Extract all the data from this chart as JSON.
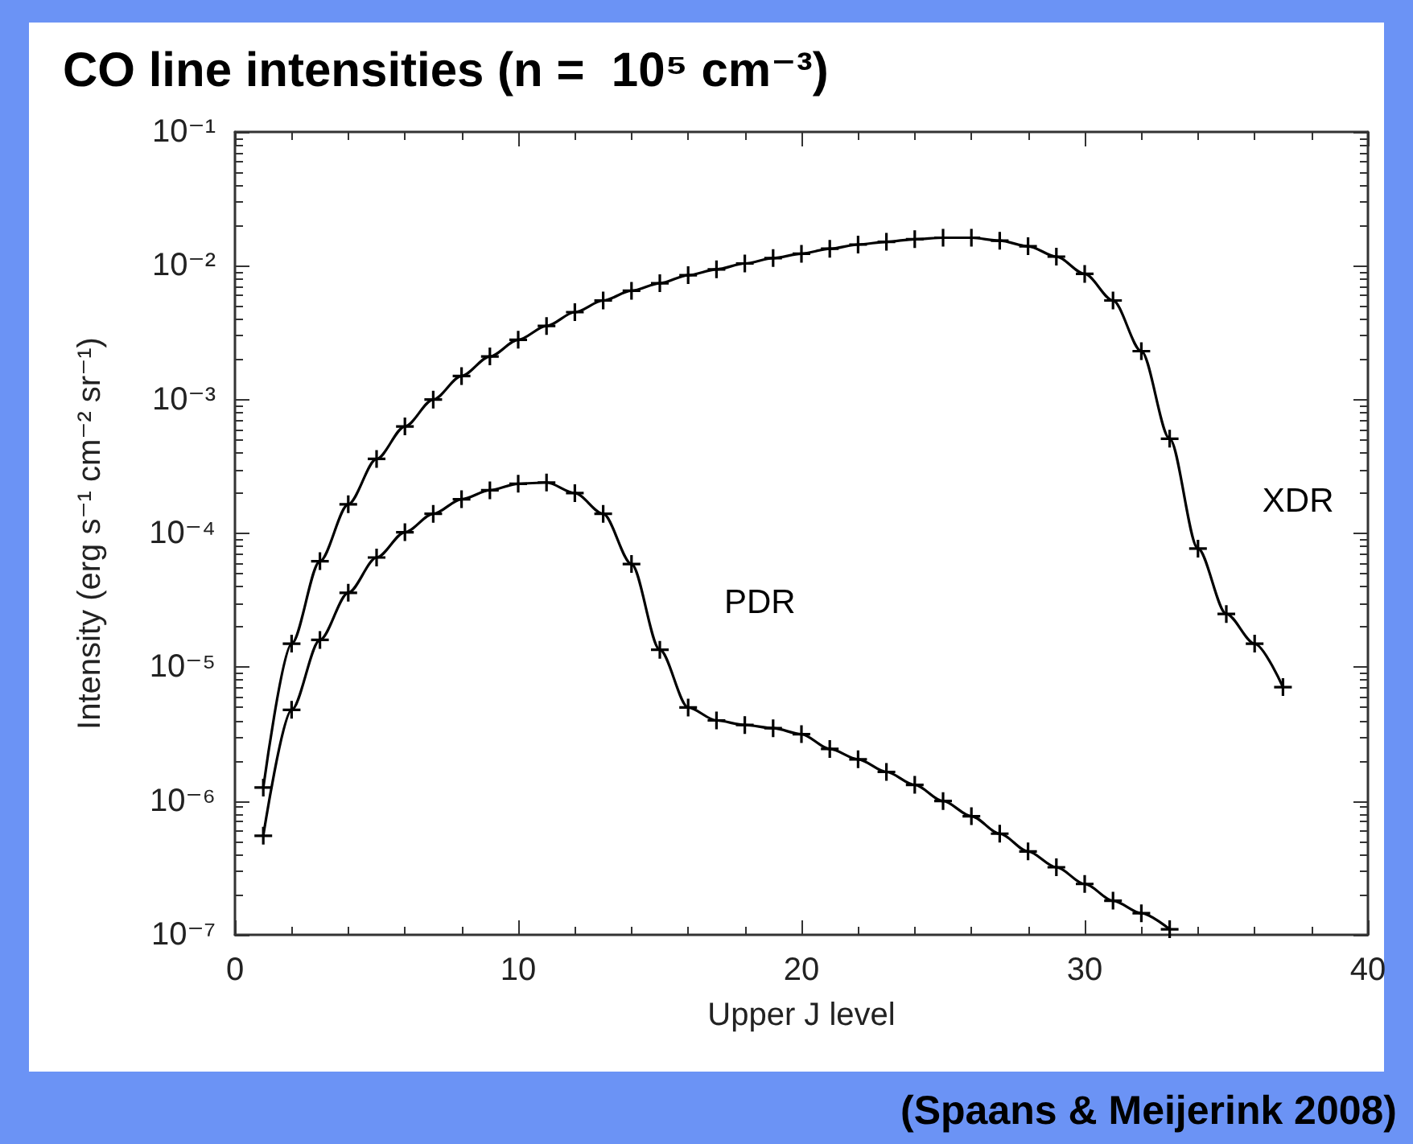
{
  "chart_data": {
    "type": "line",
    "title": "CO line intensities (n =  10⁵ cm⁻³)",
    "xlabel": "Upper J level",
    "ylabel": "Intensity (erg s⁻¹ cm⁻² sr⁻¹)",
    "annotations": [
      "(Spaans & Meijerink 2008)"
    ],
    "x": [
      1,
      2,
      3,
      4,
      5,
      6,
      7,
      8,
      9,
      10,
      11,
      12,
      13,
      14,
      15,
      16,
      17,
      18,
      19,
      20,
      21,
      22,
      23,
      24,
      25,
      26,
      27,
      28,
      29,
      30,
      31,
      32,
      33,
      34,
      35,
      36,
      37
    ],
    "series": [
      {
        "name": "XDR",
        "color": "#000000",
        "values": [
          1.26e-06,
          1.5e-05,
          6.2e-05,
          0.000165,
          0.00036,
          0.00063,
          0.001,
          0.0015,
          0.0021,
          0.0028,
          0.00355,
          0.0045,
          0.0055,
          0.0065,
          0.0074,
          0.0085,
          0.0094,
          0.0104,
          0.0114,
          0.0123,
          0.0134,
          0.0144,
          0.0151,
          0.0158,
          0.0162,
          0.0162,
          0.0154,
          0.014,
          0.0117,
          0.0087,
          0.0055,
          0.0023,
          0.00051,
          7.7e-05,
          2.5e-05,
          1.5e-05,
          7.1e-06
        ]
      },
      {
        "name": "PDR",
        "color": "#000000",
        "values": [
          5.5e-07,
          4.8e-06,
          1.6e-05,
          3.6e-05,
          6.6e-05,
          0.000102,
          0.00014,
          0.00018,
          0.00021,
          0.000235,
          0.00024,
          0.0002,
          0.00014,
          5.9e-05,
          1.35e-05,
          5e-06,
          4e-06,
          3.7e-06,
          3.5e-06,
          3.16e-06,
          2.45e-06,
          2.05e-06,
          1.65e-06,
          1.32e-06,
          1e-06,
          7.7e-07,
          5.7e-07,
          4.2e-07,
          3.2e-07,
          2.4e-07,
          1.8e-07,
          1.45e-07,
          1.1e-07,
          null,
          null,
          null,
          null
        ]
      }
    ],
    "xlim": [
      0,
      40
    ],
    "xticks": [
      0,
      10,
      20,
      30,
      40
    ],
    "log": "y",
    "ylim": [
      1e-07,
      0.1
    ],
    "yticks": [
      {
        "value": 1e-07,
        "label": "10⁻⁷"
      },
      {
        "value": 1e-06,
        "label": "10⁻⁶"
      },
      {
        "value": 1e-05,
        "label": "10⁻⁵"
      },
      {
        "value": 0.0001,
        "label": "10⁻⁴"
      },
      {
        "value": 0.001,
        "label": "10⁻³"
      },
      {
        "value": 0.01,
        "label": "10⁻²"
      },
      {
        "value": 0.1,
        "label": "10⁻¹"
      }
    ],
    "grid": false,
    "legend": false,
    "marker": "cross",
    "line_style": "solid"
  }
}
